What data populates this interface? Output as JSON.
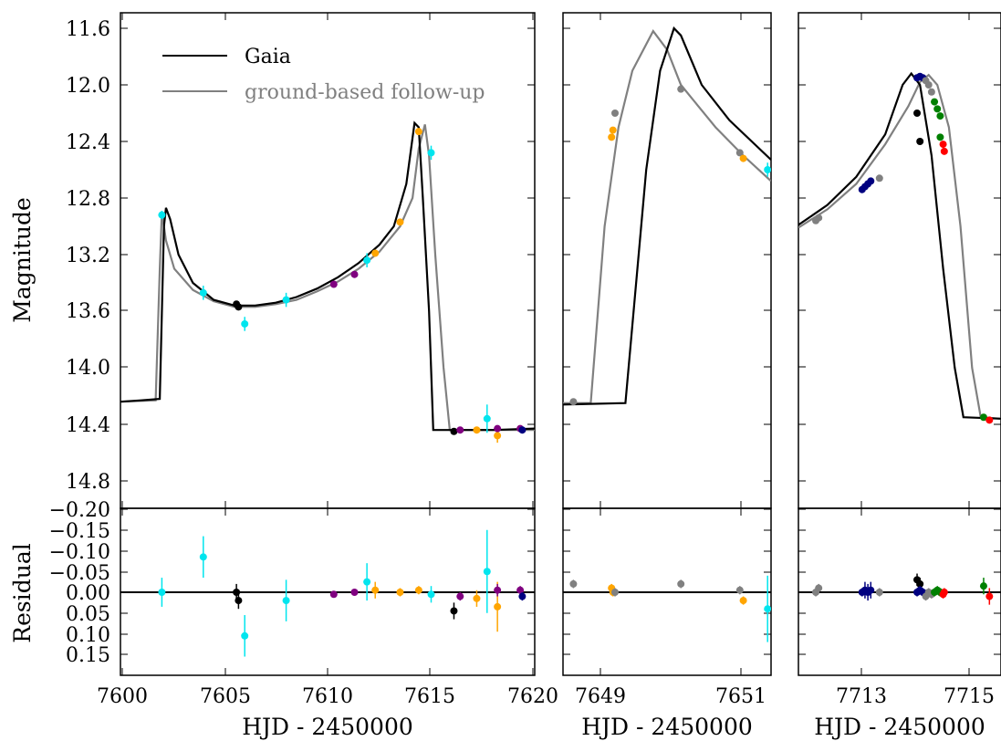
{
  "chart_data": {
    "type": "line",
    "ylabel_top": "Magnitude",
    "ylabel_bottom": "Residual",
    "xlabel": "HJD - 2450000",
    "legend": {
      "position": "upper-left",
      "entries": [
        {
          "label": "Gaia",
          "color": "#000000"
        },
        {
          "label": "ground-based follow-up",
          "color": "#808080"
        }
      ]
    },
    "top_yticks": [
      "11.6",
      "12.0",
      "12.4",
      "12.8",
      "13.2",
      "13.6",
      "14.0",
      "14.4",
      "14.8"
    ],
    "bottom_yticks": [
      "−0.20",
      "−0.15",
      "−0.10",
      "−0.05",
      "0.00",
      "0.05",
      "0.10",
      "0.15"
    ],
    "panels": [
      {
        "name": "panel-1",
        "xlim": [
          7600,
          7620
        ],
        "xticks": [
          "7600",
          "7605",
          "7610",
          "7615",
          "7620"
        ],
        "ylim_top": [
          15.0,
          11.5
        ],
        "ylim_bottom": [
          0.2,
          -0.2
        ],
        "gaia_model": [
          [
            7600,
            14.24
          ],
          [
            7601,
            14.23
          ],
          [
            7601.9,
            14.22
          ],
          [
            7602.1,
            13.0
          ],
          [
            7602.2,
            12.87
          ],
          [
            7602.4,
            12.95
          ],
          [
            7602.8,
            13.2
          ],
          [
            7603.5,
            13.4
          ],
          [
            7604.5,
            13.52
          ],
          [
            7605.5,
            13.56
          ],
          [
            7606.5,
            13.56
          ],
          [
            7607.5,
            13.54
          ],
          [
            7608.5,
            13.5
          ],
          [
            7609.5,
            13.44
          ],
          [
            7610.5,
            13.36
          ],
          [
            7611.5,
            13.26
          ],
          [
            7612.5,
            13.13
          ],
          [
            7613.2,
            13.0
          ],
          [
            7613.8,
            12.7
          ],
          [
            7614.2,
            12.27
          ],
          [
            7614.4,
            12.3
          ],
          [
            7614.6,
            12.8
          ],
          [
            7614.9,
            13.6
          ],
          [
            7615.1,
            14.44
          ],
          [
            7616,
            14.44
          ],
          [
            7618,
            14.44
          ],
          [
            7620,
            14.43
          ]
        ],
        "ground_model": [
          [
            7600,
            14.24
          ],
          [
            7601.7,
            14.23
          ],
          [
            7601.9,
            13.3
          ],
          [
            7602.0,
            12.9
          ],
          [
            7602.2,
            13.1
          ],
          [
            7602.6,
            13.3
          ],
          [
            7603.5,
            13.45
          ],
          [
            7604.5,
            13.53
          ],
          [
            7605.5,
            13.57
          ],
          [
            7606.5,
            13.57
          ],
          [
            7607.5,
            13.55
          ],
          [
            7608.5,
            13.52
          ],
          [
            7609.5,
            13.46
          ],
          [
            7610.5,
            13.39
          ],
          [
            7611.5,
            13.3
          ],
          [
            7612.5,
            13.18
          ],
          [
            7613.5,
            13.0
          ],
          [
            7614.1,
            12.8
          ],
          [
            7614.4,
            12.45
          ],
          [
            7614.7,
            12.28
          ],
          [
            7614.9,
            12.5
          ],
          [
            7615.2,
            13.2
          ],
          [
            7615.6,
            14.0
          ],
          [
            7615.9,
            14.44
          ],
          [
            7620,
            14.44
          ]
        ],
        "points": [
          {
            "x": 7602.0,
            "y": 12.92,
            "err": 0.03,
            "res": 0.0,
            "res_err": 0.035,
            "color": "#00e5ee"
          },
          {
            "x": 7604.0,
            "y": 13.47,
            "err": 0.05,
            "res": -0.085,
            "res_err": 0.05,
            "color": "#00e5ee"
          },
          {
            "x": 7605.6,
            "y": 13.55,
            "err": 0.02,
            "res": 0.0,
            "res_err": 0.02,
            "color": "#000000"
          },
          {
            "x": 7605.7,
            "y": 13.57,
            "err": 0.02,
            "res": 0.02,
            "res_err": 0.02,
            "color": "#000000"
          },
          {
            "x": 7606.0,
            "y": 13.69,
            "err": 0.05,
            "res": 0.105,
            "res_err": 0.05,
            "color": "#00e5ee"
          },
          {
            "x": 7608.0,
            "y": 13.52,
            "err": 0.05,
            "res": 0.02,
            "res_err": 0.05,
            "color": "#00e5ee"
          },
          {
            "x": 7610.3,
            "y": 13.41,
            "err": 0.01,
            "res": 0.005,
            "res_err": 0.008,
            "color": "#800080"
          },
          {
            "x": 7611.3,
            "y": 13.34,
            "err": 0.01,
            "res": 0.0,
            "res_err": 0.008,
            "color": "#800080"
          },
          {
            "x": 7611.9,
            "y": 13.24,
            "err": 0.05,
            "res": -0.025,
            "res_err": 0.045,
            "color": "#00e5ee"
          },
          {
            "x": 7612.3,
            "y": 13.19,
            "err": 0.02,
            "res": -0.005,
            "res_err": 0.02,
            "color": "#ffa500"
          },
          {
            "x": 7613.5,
            "y": 12.97,
            "err": 0.01,
            "res": 0.0,
            "res_err": 0.01,
            "color": "#ffa500"
          },
          {
            "x": 7614.4,
            "y": 12.33,
            "err": 0.01,
            "res": -0.005,
            "res_err": 0.01,
            "color": "#ffa500"
          },
          {
            "x": 7615.0,
            "y": 12.48,
            "err": 0.05,
            "res": 0.005,
            "res_err": 0.02,
            "color": "#00e5ee"
          },
          {
            "x": 7616.1,
            "y": 14.45,
            "err": 0.02,
            "res": 0.045,
            "res_err": 0.02,
            "color": "#000000"
          },
          {
            "x": 7616.4,
            "y": 14.44,
            "err": 0.01,
            "res": 0.01,
            "res_err": 0.01,
            "color": "#800080"
          },
          {
            "x": 7617.2,
            "y": 14.44,
            "err": 0.02,
            "res": 0.015,
            "res_err": 0.02,
            "color": "#ffa500"
          },
          {
            "x": 7617.7,
            "y": 14.36,
            "err": 0.1,
            "res": -0.05,
            "res_err": 0.1,
            "color": "#00e5ee"
          },
          {
            "x": 7618.2,
            "y": 14.48,
            "err": 0.05,
            "res": 0.035,
            "res_err": 0.06,
            "color": "#ffa500"
          },
          {
            "x": 7618.2,
            "y": 14.43,
            "err": 0.01,
            "res": -0.005,
            "res_err": 0.015,
            "color": "#800080"
          },
          {
            "x": 7619.3,
            "y": 14.43,
            "err": 0.01,
            "res": -0.005,
            "res_err": 0.01,
            "color": "#800080"
          },
          {
            "x": 7619.4,
            "y": 14.44,
            "err": 0.02,
            "res": 0.01,
            "res_err": 0.01,
            "color": "#000080"
          }
        ]
      },
      {
        "name": "panel-2",
        "xlim": [
          7648.6,
          7651.6
        ],
        "xticks": [
          "7649",
          "7651"
        ],
        "ylim_top": [
          15.0,
          11.5
        ],
        "ylim_bottom": [
          0.2,
          -0.2
        ],
        "gaia_model": [
          [
            7648.6,
            14.26
          ],
          [
            7649.5,
            14.25
          ],
          [
            7649.8,
            12.6
          ],
          [
            7650.0,
            11.9
          ],
          [
            7650.2,
            11.6
          ],
          [
            7650.3,
            11.65
          ],
          [
            7650.6,
            12.0
          ],
          [
            7651.0,
            12.25
          ],
          [
            7651.6,
            12.53
          ]
        ],
        "ground_model": [
          [
            7648.6,
            14.25
          ],
          [
            7649.0,
            14.25
          ],
          [
            7649.2,
            13.0
          ],
          [
            7649.4,
            12.3
          ],
          [
            7649.6,
            11.9
          ],
          [
            7649.9,
            11.62
          ],
          [
            7650.1,
            11.75
          ],
          [
            7650.3,
            12.0
          ],
          [
            7650.8,
            12.3
          ],
          [
            7651.2,
            12.5
          ],
          [
            7651.6,
            12.68
          ]
        ],
        "points": [
          {
            "x": 7648.75,
            "y": 14.24,
            "err": 0.01,
            "res": -0.02,
            "res_err": 0.01,
            "color": "#808080"
          },
          {
            "x": 7649.3,
            "y": 12.37,
            "err": 0.02,
            "res": -0.01,
            "res_err": 0.01,
            "color": "#ffa500"
          },
          {
            "x": 7649.32,
            "y": 12.32,
            "err": 0.02,
            "res": 0.0,
            "res_err": 0.01,
            "color": "#ffa500"
          },
          {
            "x": 7649.35,
            "y": 12.2,
            "err": 0.01,
            "res": 0.0,
            "res_err": 0.01,
            "color": "#808080"
          },
          {
            "x": 7650.3,
            "y": 12.03,
            "err": 0.01,
            "res": -0.02,
            "res_err": 0.01,
            "color": "#808080"
          },
          {
            "x": 7651.15,
            "y": 12.48,
            "err": 0.01,
            "res": -0.005,
            "res_err": 0.01,
            "color": "#808080"
          },
          {
            "x": 7651.2,
            "y": 12.52,
            "err": 0.01,
            "res": 0.02,
            "res_err": 0.01,
            "color": "#ffa500"
          },
          {
            "x": 7651.55,
            "y": 12.6,
            "err": 0.05,
            "res": 0.04,
            "res_err": 0.08,
            "color": "#00e5ee"
          }
        ]
      },
      {
        "name": "panel-3",
        "xlim": [
          7712.0,
          7715.5
        ],
        "xticks": [
          "7713",
          "7715"
        ],
        "ylim_top": [
          15.0,
          11.5
        ],
        "ylim_bottom": [
          0.2,
          -0.2
        ],
        "gaia_model": [
          [
            7712.0,
            12.99
          ],
          [
            7712.5,
            12.85
          ],
          [
            7713.0,
            12.65
          ],
          [
            7713.5,
            12.35
          ],
          [
            7713.8,
            12.0
          ],
          [
            7713.95,
            11.92
          ],
          [
            7714.1,
            12.0
          ],
          [
            7714.3,
            12.5
          ],
          [
            7714.5,
            13.3
          ],
          [
            7714.7,
            14.0
          ],
          [
            7714.85,
            14.35
          ],
          [
            7715.5,
            14.36
          ]
        ],
        "ground_model": [
          [
            7712.0,
            13.01
          ],
          [
            7712.5,
            12.88
          ],
          [
            7713.0,
            12.7
          ],
          [
            7713.5,
            12.42
          ],
          [
            7713.9,
            12.15
          ],
          [
            7714.1,
            11.98
          ],
          [
            7714.25,
            11.93
          ],
          [
            7714.4,
            12.0
          ],
          [
            7714.6,
            12.3
          ],
          [
            7714.8,
            13.0
          ],
          [
            7715.0,
            14.0
          ],
          [
            7715.15,
            14.35
          ],
          [
            7715.5,
            14.36
          ]
        ],
        "points": [
          {
            "x": 7712.3,
            "y": 12.96,
            "err": 0.01,
            "res": 0.0,
            "res_err": 0.01,
            "color": "#808080"
          },
          {
            "x": 7712.35,
            "y": 12.94,
            "err": 0.01,
            "res": -0.01,
            "res_err": 0.01,
            "color": "#808080"
          },
          {
            "x": 7713.1,
            "y": 12.74,
            "err": 0.01,
            "res": 0.0,
            "res_err": 0.01,
            "color": "#000080"
          },
          {
            "x": 7713.15,
            "y": 12.72,
            "err": 0.01,
            "res": -0.005,
            "res_err": 0.02,
            "color": "#000080"
          },
          {
            "x": 7713.2,
            "y": 12.7,
            "err": 0.01,
            "res": 0.0,
            "res_err": 0.02,
            "color": "#000080"
          },
          {
            "x": 7713.25,
            "y": 12.68,
            "err": 0.01,
            "res": -0.005,
            "res_err": 0.02,
            "color": "#000080"
          },
          {
            "x": 7713.4,
            "y": 12.66,
            "err": 0.01,
            "res": 0.0,
            "res_err": 0.01,
            "color": "#808080"
          },
          {
            "x": 7714.05,
            "y": 12.2,
            "err": 0.01,
            "res": -0.03,
            "res_err": 0.015,
            "color": "#000000"
          },
          {
            "x": 7714.1,
            "y": 12.4,
            "err": 0.01,
            "res": -0.02,
            "res_err": 0.015,
            "color": "#000000"
          },
          {
            "x": 7714.05,
            "y": 11.95,
            "err": 0.01,
            "res": 0.0,
            "res_err": 0.01,
            "color": "#000080"
          },
          {
            "x": 7714.1,
            "y": 11.94,
            "err": 0.01,
            "res": -0.005,
            "res_err": 0.01,
            "color": "#000080"
          },
          {
            "x": 7714.15,
            "y": 11.95,
            "err": 0.01,
            "res": 0.0,
            "res_err": 0.01,
            "color": "#000080"
          },
          {
            "x": 7714.2,
            "y": 11.97,
            "err": 0.01,
            "res": 0.01,
            "res_err": 0.01,
            "color": "#808080"
          },
          {
            "x": 7714.25,
            "y": 12.0,
            "err": 0.01,
            "res": 0.0,
            "res_err": 0.01,
            "color": "#808080"
          },
          {
            "x": 7714.3,
            "y": 12.05,
            "err": 0.01,
            "res": 0.005,
            "res_err": 0.01,
            "color": "#808080"
          },
          {
            "x": 7714.35,
            "y": 12.12,
            "err": 0.01,
            "res": 0.0,
            "res_err": 0.01,
            "color": "#008000"
          },
          {
            "x": 7714.4,
            "y": 12.17,
            "err": 0.01,
            "res": -0.005,
            "res_err": 0.01,
            "color": "#008000"
          },
          {
            "x": 7714.45,
            "y": 12.22,
            "err": 0.01,
            "res": 0.0,
            "res_err": 0.01,
            "color": "#008000"
          },
          {
            "x": 7714.45,
            "y": 12.37,
            "err": 0.01,
            "res": 0.0,
            "res_err": 0.01,
            "color": "#008000"
          },
          {
            "x": 7714.5,
            "y": 12.42,
            "err": 0.01,
            "res": 0.005,
            "res_err": 0.01,
            "color": "#ff0000"
          },
          {
            "x": 7714.52,
            "y": 12.47,
            "err": 0.01,
            "res": 0.0,
            "res_err": 0.01,
            "color": "#ff0000"
          },
          {
            "x": 7715.2,
            "y": 14.35,
            "err": 0.01,
            "res": -0.015,
            "res_err": 0.02,
            "color": "#008000"
          },
          {
            "x": 7715.3,
            "y": 14.37,
            "err": 0.01,
            "res": 0.01,
            "res_err": 0.02,
            "color": "#ff0000"
          }
        ]
      }
    ]
  }
}
